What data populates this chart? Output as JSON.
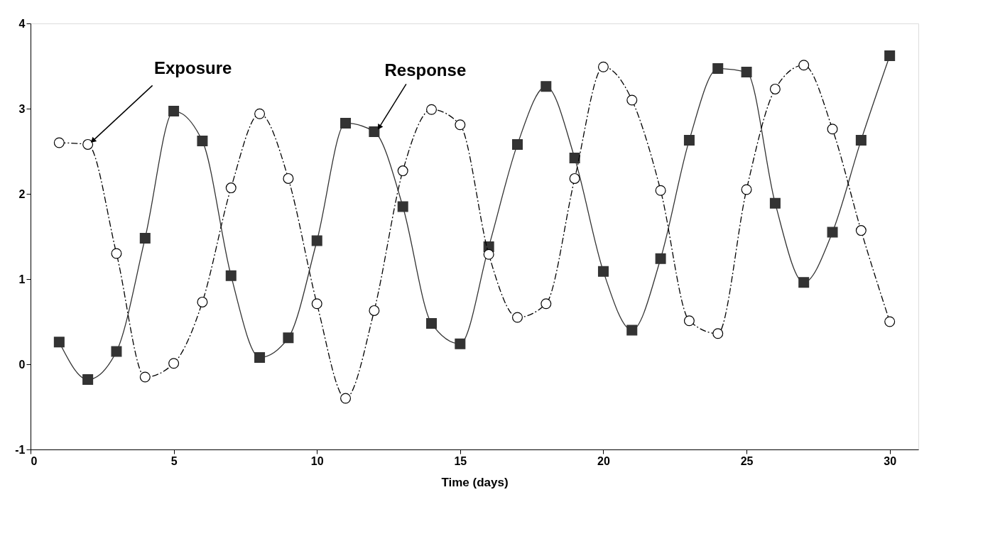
{
  "chart_data": {
    "type": "line",
    "xlabel": "Time (days)",
    "x": [
      1,
      2,
      3,
      4,
      5,
      6,
      7,
      8,
      9,
      10,
      11,
      12,
      13,
      14,
      15,
      16,
      17,
      18,
      19,
      20,
      21,
      22,
      23,
      24,
      25,
      26,
      27,
      28,
      29,
      30
    ],
    "series": [
      {
        "name": "Response",
        "color": "#333333",
        "marker": "square",
        "line_style": "solid",
        "values": [
          0.26,
          -0.18,
          0.15,
          1.48,
          2.97,
          2.62,
          1.04,
          0.08,
          0.31,
          1.45,
          2.83,
          2.73,
          1.85,
          0.48,
          0.24,
          1.38,
          2.58,
          3.26,
          2.42,
          1.09,
          0.4,
          1.24,
          2.63,
          3.47,
          3.43,
          1.89,
          0.96,
          1.55,
          2.63,
          3.62
        ]
      },
      {
        "name": "Exposure",
        "color": "#000000",
        "marker": "circle",
        "line_style": "dashed",
        "values": [
          2.6,
          2.58,
          1.3,
          -0.15,
          0.01,
          0.73,
          2.07,
          2.94,
          2.18,
          0.71,
          -0.4,
          0.63,
          2.27,
          2.99,
          2.81,
          1.29,
          0.55,
          0.71,
          2.18,
          3.49,
          3.1,
          2.04,
          0.51,
          0.36,
          2.05,
          3.23,
          3.51,
          2.76,
          1.57,
          0.5
        ]
      }
    ],
    "xlim": [
      0,
      31
    ],
    "xticks": [
      0,
      5,
      10,
      15,
      20,
      25,
      30
    ],
    "ylim": [
      -1,
      4
    ],
    "yticks": [
      -1,
      0,
      1,
      2,
      3,
      4
    ],
    "grid": false
  }
}
